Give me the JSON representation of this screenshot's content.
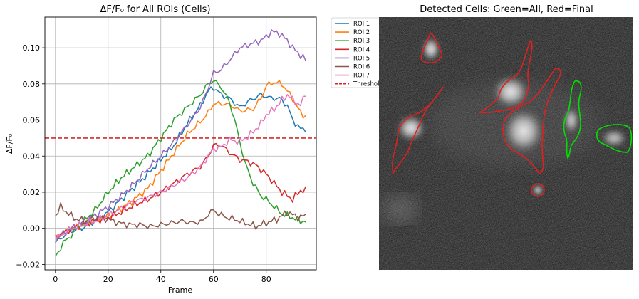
{
  "chart_data": [
    {
      "type": "line",
      "title": "ΔF/F₀ for All ROIs (Cells)",
      "xlabel": "Frame",
      "ylabel": "ΔF/F₀",
      "xlim": [
        -4,
        99
      ],
      "ylim": [
        -0.023,
        0.117
      ],
      "xticks": [
        0,
        20,
        40,
        60,
        80
      ],
      "xtick_labels": [
        "0",
        "20",
        "40",
        "60",
        "80"
      ],
      "yticks": [
        -0.02,
        0.0,
        0.02,
        0.04,
        0.06,
        0.08,
        0.1
      ],
      "ytick_labels": [
        "−0.02",
        "0.00",
        "0.02",
        "0.04",
        "0.06",
        "0.08",
        "0.10"
      ],
      "grid": true,
      "legend_position": "outside-right",
      "threshold": {
        "name": "Threshold",
        "value": 0.05,
        "color": "#d62728",
        "style": "dashed"
      },
      "series": [
        {
          "name": "ROI 1",
          "color": "#1f77b4",
          "knots": [
            [
              0,
              -0.008
            ],
            [
              5,
              -0.002
            ],
            [
              10,
              0.0
            ],
            [
              15,
              0.004
            ],
            [
              20,
              0.009
            ],
            [
              25,
              0.016
            ],
            [
              30,
              0.023
            ],
            [
              35,
              0.03
            ],
            [
              40,
              0.038
            ],
            [
              45,
              0.046
            ],
            [
              50,
              0.058
            ],
            [
              55,
              0.068
            ],
            [
              58,
              0.076
            ],
            [
              60,
              0.078
            ],
            [
              63,
              0.074
            ],
            [
              66,
              0.072
            ],
            [
              70,
              0.067
            ],
            [
              74,
              0.071
            ],
            [
              78,
              0.074
            ],
            [
              82,
              0.072
            ],
            [
              85,
              0.072
            ],
            [
              88,
              0.068
            ],
            [
              90,
              0.06
            ],
            [
              93,
              0.055
            ],
            [
              95,
              0.055
            ]
          ]
        },
        {
          "name": "ROI 2",
          "color": "#ff7f0e",
          "knots": [
            [
              0,
              -0.005
            ],
            [
              5,
              -0.001
            ],
            [
              10,
              0.002
            ],
            [
              15,
              0.004
            ],
            [
              20,
              0.007
            ],
            [
              25,
              0.011
            ],
            [
              30,
              0.016
            ],
            [
              35,
              0.022
            ],
            [
              40,
              0.032
            ],
            [
              45,
              0.042
            ],
            [
              50,
              0.052
            ],
            [
              55,
              0.059
            ],
            [
              58,
              0.064
            ],
            [
              60,
              0.069
            ],
            [
              64,
              0.069
            ],
            [
              67,
              0.068
            ],
            [
              70,
              0.065
            ],
            [
              75,
              0.066
            ],
            [
              78,
              0.072
            ],
            [
              80,
              0.079
            ],
            [
              83,
              0.081
            ],
            [
              86,
              0.08
            ],
            [
              90,
              0.072
            ],
            [
              93,
              0.064
            ],
            [
              95,
              0.062
            ]
          ]
        },
        {
          "name": "ROI 3",
          "color": "#2ca02c",
          "knots": [
            [
              0,
              -0.016
            ],
            [
              3,
              -0.008
            ],
            [
              6,
              -0.004
            ],
            [
              10,
              0.003
            ],
            [
              15,
              0.01
            ],
            [
              20,
              0.02
            ],
            [
              25,
              0.028
            ],
            [
              30,
              0.034
            ],
            [
              35,
              0.04
            ],
            [
              40,
              0.05
            ],
            [
              45,
              0.06
            ],
            [
              50,
              0.067
            ],
            [
              55,
              0.074
            ],
            [
              58,
              0.08
            ],
            [
              60,
              0.082
            ],
            [
              63,
              0.078
            ],
            [
              66,
              0.07
            ],
            [
              68,
              0.06
            ],
            [
              70,
              0.048
            ],
            [
              72,
              0.036
            ],
            [
              75,
              0.025
            ],
            [
              78,
              0.018
            ],
            [
              80,
              0.016
            ],
            [
              83,
              0.012
            ],
            [
              86,
              0.008
            ],
            [
              90,
              0.006
            ],
            [
              93,
              0.004
            ],
            [
              95,
              0.004
            ]
          ]
        },
        {
          "name": "ROI 4",
          "color": "#d62728",
          "knots": [
            [
              0,
              -0.005
            ],
            [
              5,
              -0.001
            ],
            [
              10,
              0.002
            ],
            [
              15,
              0.004
            ],
            [
              20,
              0.006
            ],
            [
              25,
              0.009
            ],
            [
              30,
              0.013
            ],
            [
              35,
              0.016
            ],
            [
              40,
              0.02
            ],
            [
              45,
              0.025
            ],
            [
              50,
              0.03
            ],
            [
              55,
              0.034
            ],
            [
              58,
              0.04
            ],
            [
              60,
              0.046
            ],
            [
              63,
              0.046
            ],
            [
              66,
              0.042
            ],
            [
              70,
              0.038
            ],
            [
              73,
              0.037
            ],
            [
              76,
              0.035
            ],
            [
              80,
              0.03
            ],
            [
              83,
              0.025
            ],
            [
              86,
              0.02
            ],
            [
              90,
              0.016
            ],
            [
              93,
              0.021
            ],
            [
              95,
              0.021
            ]
          ]
        },
        {
          "name": "ROI 5",
          "color": "#9467bd",
          "knots": [
            [
              0,
              -0.006
            ],
            [
              5,
              -0.001
            ],
            [
              10,
              0.003
            ],
            [
              15,
              0.007
            ],
            [
              20,
              0.012
            ],
            [
              25,
              0.018
            ],
            [
              30,
              0.025
            ],
            [
              35,
              0.033
            ],
            [
              40,
              0.04
            ],
            [
              45,
              0.048
            ],
            [
              50,
              0.057
            ],
            [
              55,
              0.067
            ],
            [
              58,
              0.078
            ],
            [
              60,
              0.086
            ],
            [
              63,
              0.088
            ],
            [
              66,
              0.093
            ],
            [
              70,
              0.1
            ],
            [
              74,
              0.102
            ],
            [
              78,
              0.104
            ],
            [
              80,
              0.106
            ],
            [
              82,
              0.109
            ],
            [
              85,
              0.108
            ],
            [
              88,
              0.104
            ],
            [
              90,
              0.1
            ],
            [
              93,
              0.096
            ],
            [
              95,
              0.093
            ]
          ]
        },
        {
          "name": "ROI 6",
          "color": "#8c564b",
          "knots": [
            [
              0,
              0.007
            ],
            [
              2,
              0.012
            ],
            [
              5,
              0.008
            ],
            [
              8,
              0.005
            ],
            [
              12,
              0.004
            ],
            [
              16,
              0.006
            ],
            [
              20,
              0.005
            ],
            [
              24,
              0.003
            ],
            [
              28,
              0.002
            ],
            [
              32,
              0.002
            ],
            [
              36,
              0.001
            ],
            [
              40,
              0.002
            ],
            [
              44,
              0.003
            ],
            [
              48,
              0.004
            ],
            [
              52,
              0.003
            ],
            [
              56,
              0.004
            ],
            [
              58,
              0.008
            ],
            [
              60,
              0.01
            ],
            [
              62,
              0.008
            ],
            [
              65,
              0.006
            ],
            [
              68,
              0.005
            ],
            [
              72,
              0.003
            ],
            [
              76,
              0.001
            ],
            [
              80,
              0.003
            ],
            [
              84,
              0.005
            ],
            [
              88,
              0.009
            ],
            [
              92,
              0.006
            ],
            [
              95,
              0.007
            ]
          ]
        },
        {
          "name": "ROI 7",
          "color": "#e377c2",
          "knots": [
            [
              0,
              -0.006
            ],
            [
              5,
              -0.001
            ],
            [
              10,
              0.002
            ],
            [
              15,
              0.004
            ],
            [
              20,
              0.007
            ],
            [
              25,
              0.011
            ],
            [
              30,
              0.015
            ],
            [
              35,
              0.017
            ],
            [
              40,
              0.02
            ],
            [
              45,
              0.024
            ],
            [
              50,
              0.028
            ],
            [
              55,
              0.034
            ],
            [
              58,
              0.04
            ],
            [
              60,
              0.044
            ],
            [
              63,
              0.045
            ],
            [
              66,
              0.049
            ],
            [
              70,
              0.048
            ],
            [
              74,
              0.052
            ],
            [
              78,
              0.058
            ],
            [
              80,
              0.063
            ],
            [
              83,
              0.066
            ],
            [
              86,
              0.071
            ],
            [
              88,
              0.074
            ],
            [
              91,
              0.07
            ],
            [
              93,
              0.068
            ],
            [
              95,
              0.075
            ]
          ]
        }
      ]
    },
    {
      "type": "image",
      "title": "Detected Cells: Green=All, Red=Final",
      "legend": {
        "all_color": "#00e000",
        "final_color": "#e02020"
      }
    }
  ]
}
